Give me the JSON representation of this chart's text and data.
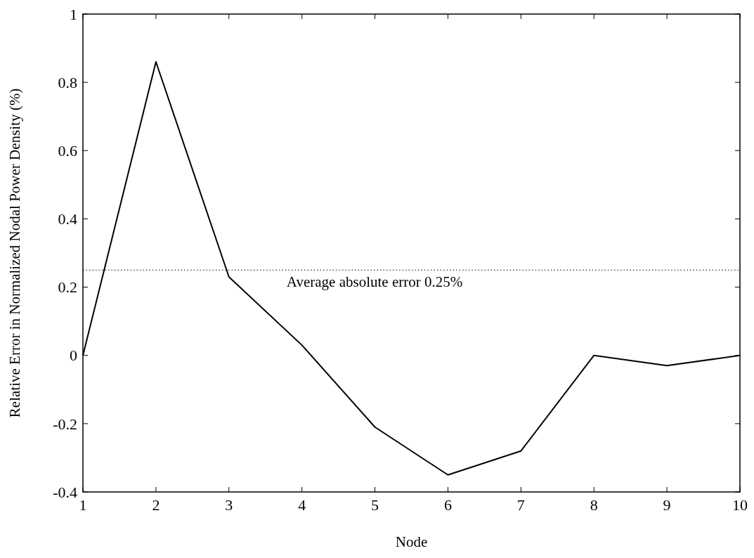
{
  "chart_data": {
    "type": "line",
    "xlabel": "Node",
    "ylabel": "Relative Error in Normalized Nodal Power Density (%)",
    "x": [
      1,
      2,
      3,
      4,
      5,
      6,
      7,
      8,
      9,
      10
    ],
    "series": [
      {
        "color": "#000000",
        "values": [
          0,
          0.86,
          0.23,
          0.03,
          -0.21,
          -0.35,
          -0.28,
          0,
          -0.03,
          0
        ]
      }
    ],
    "xlim": [
      1,
      10
    ],
    "xticks": [
      1,
      2,
      3,
      4,
      5,
      6,
      7,
      8,
      9,
      10
    ],
    "ylim": [
      -0.4,
      1
    ],
    "yticks": [
      {
        "value": -0.4,
        "label": "-0.4"
      },
      {
        "value": -0.2,
        "label": "-0.2"
      },
      0,
      0.2,
      0.4,
      0.6,
      0.8,
      1
    ],
    "ref_lines": [
      {
        "axis": "y",
        "value": 0.25,
        "label": "Average absolute error 0.25%",
        "line_style": "dotted",
        "color": "#000000"
      }
    ],
    "grid": false,
    "marker": "none",
    "line_style": "solid"
  }
}
